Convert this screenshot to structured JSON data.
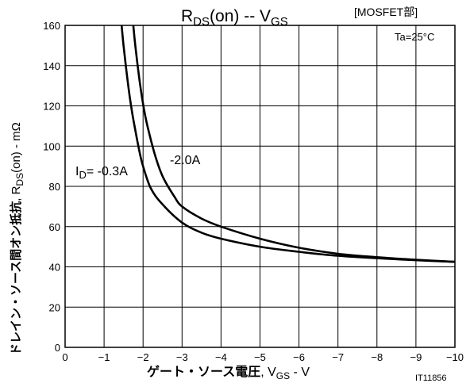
{
  "chart_data": {
    "type": "line",
    "title": {
      "main": "R",
      "main_sub": "DS",
      "main_after": "(on)  --  V",
      "main_sub2": "GS",
      "bracket": "[MOSFET部]"
    },
    "xlabel": {
      "main": "ゲート・ソース電圧",
      "after": ", V",
      "sub": "GS",
      "unit": " - V"
    },
    "ylabel": {
      "main": "ドレイン・ソース間オン抵抗",
      "after": ", R",
      "sub": "DS",
      "unit": "(on) - mΩ"
    },
    "x_ticks": [
      "0",
      "−1",
      "−2",
      "−3",
      "−4",
      "−5",
      "−6",
      "−7",
      "−8",
      "−9",
      "−10"
    ],
    "y_ticks": [
      "0",
      "20",
      "40",
      "60",
      "80",
      "100",
      "120",
      "140",
      "160"
    ],
    "xlim": [
      0,
      -10
    ],
    "ylim": [
      0,
      160
    ],
    "grid": true,
    "condition": "Ta=25°C",
    "code": "IT11856",
    "annotations": {
      "id_prefix": "I",
      "id_sub": "D",
      "id_value": "= -0.3A",
      "second": "-2.0A"
    },
    "series": [
      {
        "name": "-0.3A",
        "color": "#000000",
        "x": [
          -1.45,
          -1.5,
          -1.6,
          -1.7,
          -1.8,
          -1.9,
          -2.0,
          -2.2,
          -2.5,
          -3.0,
          -3.5,
          -4.0,
          -5.0,
          -6.0,
          -7.0,
          -8.0,
          -9.0,
          -10.0
        ],
        "y": [
          160,
          150,
          133,
          119,
          108,
          98,
          90,
          79,
          71,
          62,
          57,
          54,
          50,
          47.5,
          45.5,
          44.3,
          43.3,
          42.5
        ]
      },
      {
        "name": "-2.0A",
        "color": "#000000",
        "x": [
          -1.75,
          -1.8,
          -1.9,
          -2.0,
          -2.1,
          -2.3,
          -2.5,
          -2.8,
          -3.0,
          -3.5,
          -4.0,
          -5.0,
          -6.0,
          -7.0,
          -8.0,
          -9.0,
          -10.0
        ],
        "y": [
          160,
          150,
          134,
          121,
          111,
          96,
          85,
          75,
          70,
          64,
          60,
          54,
          49.5,
          46.5,
          44.8,
          43.5,
          42.5
        ]
      }
    ]
  }
}
